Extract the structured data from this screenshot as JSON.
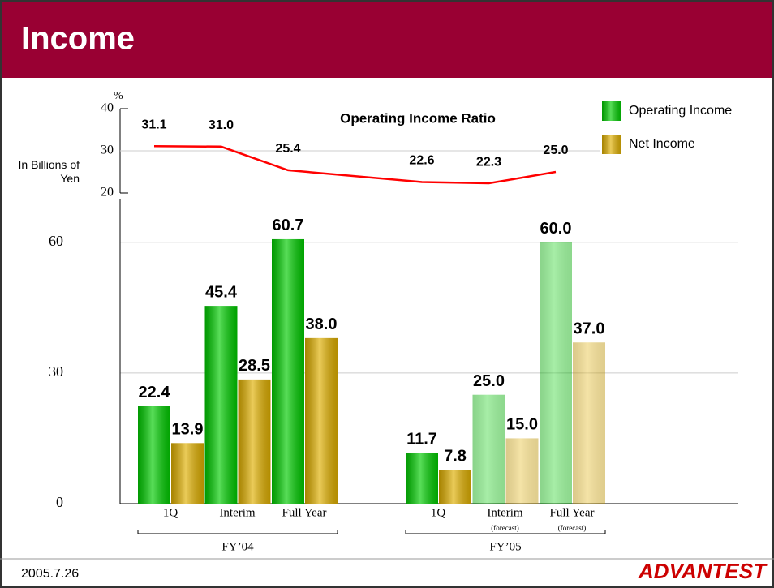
{
  "header": {
    "title": "Income"
  },
  "footer": {
    "date": "2005.7.26",
    "logo": "ADVANTEST"
  },
  "chart_data": [
    {
      "type": "line",
      "title": "Operating Income Ratio",
      "unit_label": "%",
      "values": [
        31.1,
        31.0,
        25.4,
        22.6,
        22.3,
        25.0
      ],
      "value_labels": [
        "31.1",
        "31.0",
        "25.4",
        "22.6",
        "22.3",
        "25.0"
      ],
      "color": "#ff0000",
      "ylim": [
        20,
        40
      ],
      "yticks": [
        20,
        30,
        40
      ],
      "grid": true
    },
    {
      "type": "bar",
      "y_label": "In Billions of Yen",
      "groups": [
        {
          "label": "FY’04",
          "categories": [
            "1Q",
            "Interim",
            "Full Year"
          ],
          "notes": [
            null,
            null,
            null
          ]
        },
        {
          "label": "FY’05",
          "categories": [
            "1Q",
            "Interim",
            "Full Year"
          ],
          "notes": [
            null,
            "(forecast)",
            "(forecast)"
          ]
        }
      ],
      "series": [
        {
          "name": "Operating Income",
          "color": "#00cc00",
          "values": [
            22.4,
            45.4,
            60.7,
            11.7,
            25.0,
            60.0
          ],
          "value_labels": [
            "22.4",
            "45.4",
            "60.7",
            "11.7",
            "25.0",
            "60.0"
          ]
        },
        {
          "name": "Net Income",
          "color": "#e0b000",
          "values": [
            13.9,
            28.5,
            38.0,
            7.8,
            15.0,
            37.0
          ],
          "value_labels": [
            "13.9",
            "28.5",
            "38.0",
            "7.8",
            "15.0",
            "37.0"
          ]
        }
      ],
      "ylim": [
        0,
        70
      ],
      "yticks": [
        0,
        30,
        60
      ],
      "grid": true,
      "legend": "top-right"
    }
  ]
}
